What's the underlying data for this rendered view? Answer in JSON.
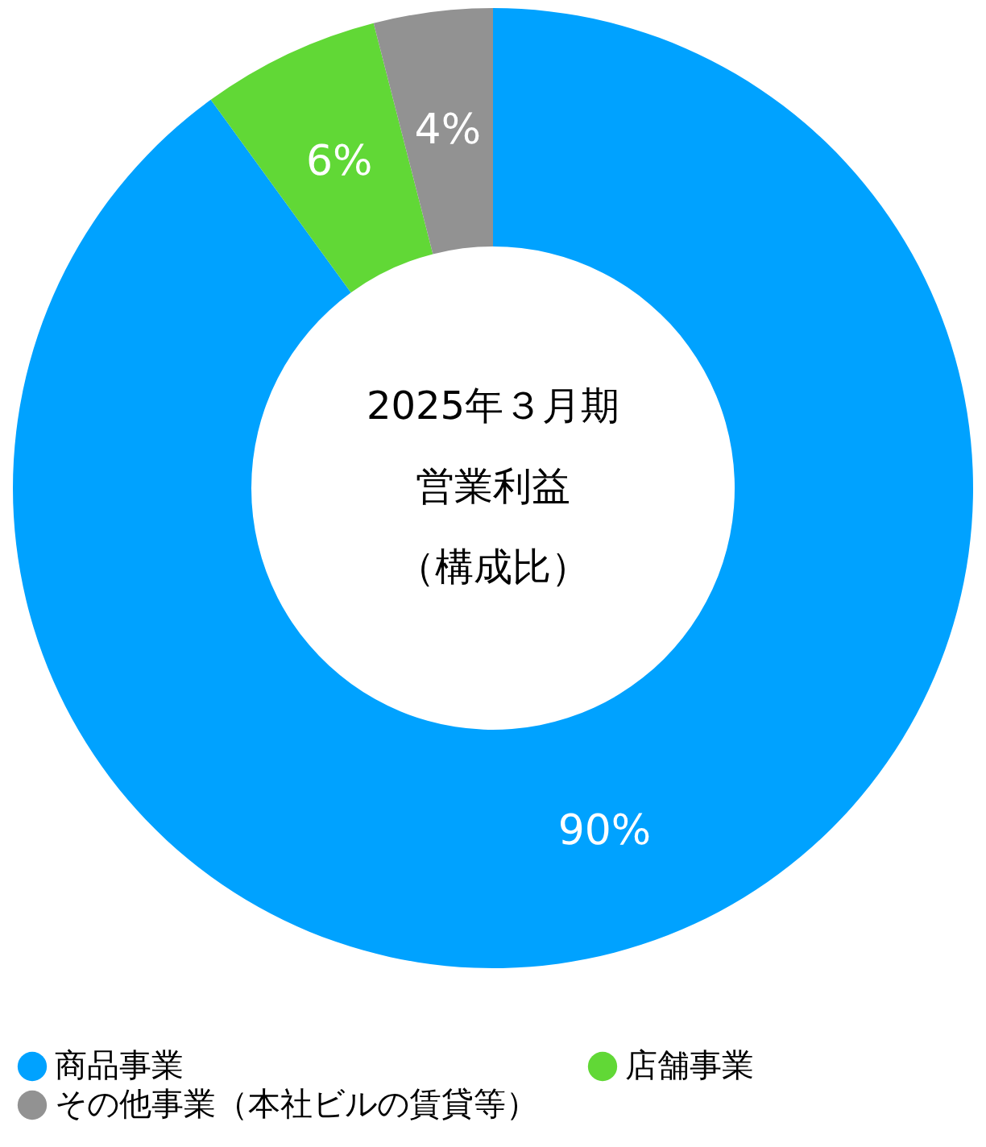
{
  "chart_data": {
    "type": "donut",
    "categories": [
      "商品事業",
      "店舗事業",
      "その他事業（本社ビルの賃貸等）"
    ],
    "values": [
      90,
      6,
      4
    ],
    "colors": [
      "#00a2ff",
      "#61d836",
      "#929292"
    ],
    "value_labels": [
      "90%",
      "6%",
      "4%"
    ],
    "annotations": [
      "2025年３月期",
      "営業利益",
      "（構成比）"
    ],
    "legend": "bottom"
  }
}
